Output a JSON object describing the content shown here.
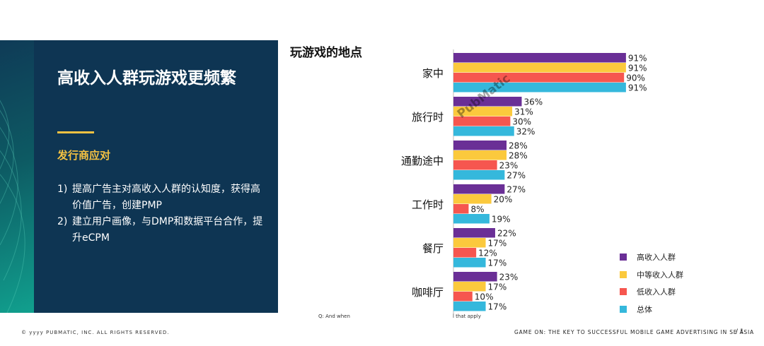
{
  "panel": {
    "title": "高收入人群玩游戏更频繁",
    "subhead": "发行商应对",
    "bullets": [
      {
        "num": "1)",
        "text": "提高广告主对高收入人群的认知度，获得高价值广告，创建PMP"
      },
      {
        "num": "2)",
        "text": "建立用户画像，与DMP和数据平台合作，提升eCPM"
      }
    ]
  },
  "chart_data": {
    "type": "bar",
    "orientation": "horizontal",
    "title": "玩游戏的地点",
    "categories": [
      "家中",
      "旅行时",
      "通勤途中",
      "工作时",
      "餐厅",
      "咖啡厅"
    ],
    "series": [
      {
        "name": "高收入人群",
        "color": "#6a2f96",
        "values": [
          91,
          36,
          28,
          27,
          22,
          23
        ],
        "labels": [
          "91%",
          "36%",
          "28%",
          "27%",
          "22%",
          "23%"
        ]
      },
      {
        "name": "中等收入人群",
        "color": "#fbc93d",
        "values": [
          91,
          31,
          28,
          20,
          17,
          17
        ],
        "labels": [
          "91%",
          "31%",
          "28%",
          "20%",
          "17%",
          "17%"
        ]
      },
      {
        "name": "低收入人群",
        "color": "#f6564f",
        "values": [
          90,
          30,
          23,
          8,
          12,
          10
        ],
        "labels": [
          "90%",
          "30%",
          "23%",
          "8%",
          "12%",
          "10%"
        ]
      },
      {
        "name": "总体",
        "color": "#35b8dc",
        "values": [
          91,
          32,
          27,
          19,
          17,
          17
        ],
        "labels": [
          "91%",
          "32%",
          "27%",
          "19%",
          "17%",
          "17%"
        ]
      }
    ],
    "xlim": [
      0,
      100
    ],
    "grid": false,
    "legend_position": "bottom-right",
    "watermark": "PubMatic"
  },
  "footnote": {
    "left": "Q: And when",
    "right": "l that apply"
  },
  "footer": {
    "copyright": "© yyyy PUBMATIC, INC. ALL RIGHTS RESERVED.",
    "deck_title": "GAME ON: THE KEY TO SUCCESSFUL MOBILE GAME ADVERTISING IN SE ASIA",
    "page": "/  1"
  }
}
